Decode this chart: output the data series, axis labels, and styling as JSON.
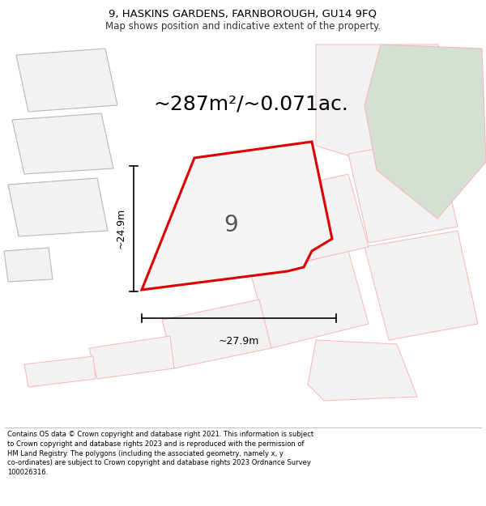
{
  "title_line1": "9, HASKINS GARDENS, FARNBOROUGH, GU14 9FQ",
  "title_line2": "Map shows position and indicative extent of the property.",
  "area_text": "~287m²/~0.071ac.",
  "plot_number": "9",
  "dim_width": "~27.9m",
  "dim_height": "~24.9m",
  "footer_text": "Contains OS data © Crown copyright and database right 2021. This information is subject to Crown copyright and database rights 2023 and is reproduced with the permission of HM Land Registry. The polygons (including the associated geometry, namely x, y co-ordinates) are subject to Crown copyright and database rights 2023 Ordnance Survey 100026316.",
  "bg_color": "#ffffff",
  "plot_fill": "#f0f0f0",
  "plot_stroke": "#dd0000",
  "neighbor_fill": "#efefef",
  "neighbor_stroke": "#cccccc",
  "neighbor_stroke2": "#f5b8b8",
  "green_fill": "#d5e0d5",
  "green_stroke": "#f5b8b8",
  "fig_width": 6.0,
  "fig_height": 6.25,
  "title_fontsize": 9.5,
  "subtitle_fontsize": 8.5,
  "area_fontsize": 18,
  "label_fontsize": 9,
  "footer_fontsize": 6.0
}
